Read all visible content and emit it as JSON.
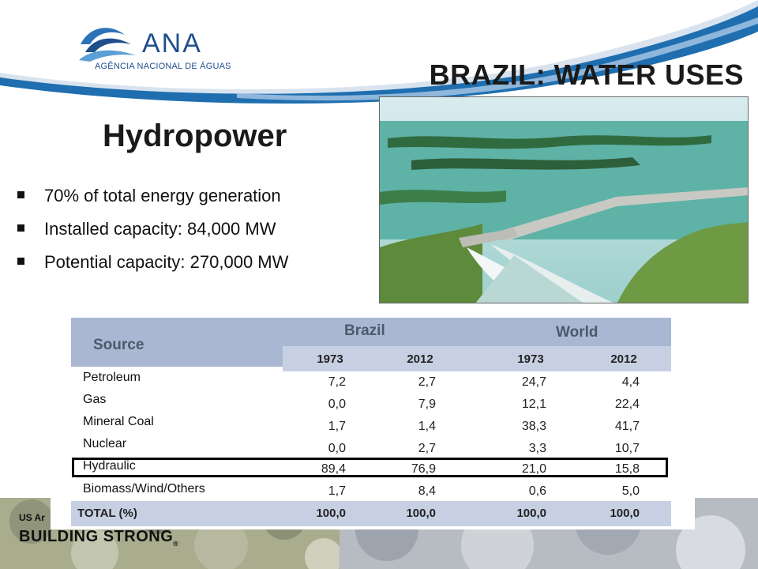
{
  "header": {
    "logo_name": "ANA",
    "logo_subtitle": "AGÊNCIA NACIONAL DE ÁGUAS",
    "title": "BRAZIL: WATER USES"
  },
  "section": {
    "subheading": "Hydropower",
    "bullets": [
      "70% of total energy generation",
      "Installed capacity: 84,000 MW",
      "Potential capacity: 270,000 MW"
    ]
  },
  "table": {
    "source_header": "Source",
    "groups": [
      "Brazil",
      "World"
    ],
    "years": [
      "1973",
      "2012",
      "1973",
      "2012"
    ],
    "rows": [
      {
        "source": "Petroleum",
        "values": [
          "7,2",
          "2,7",
          "24,7",
          "4,4"
        ]
      },
      {
        "source": "Gas",
        "values": [
          "0,0",
          "7,9",
          "12,1",
          "22,4"
        ]
      },
      {
        "source": "Mineral Coal",
        "values": [
          "1,7",
          "1,4",
          "38,3",
          "41,7"
        ]
      },
      {
        "source": "Nuclear",
        "values": [
          "0,0",
          "2,7",
          "3,3",
          "10,7"
        ]
      },
      {
        "source": "Hydraulic",
        "values": [
          "89,4",
          "76,9",
          "21,0",
          "15,8"
        ]
      },
      {
        "source": "Biomass/Wind/Others",
        "values": [
          "1,7",
          "8,4",
          "0,6",
          "5,0"
        ]
      }
    ],
    "total_label": "TOTAL (%)",
    "total_values": [
      "100,0",
      "100,0",
      "100,0",
      "100,0"
    ],
    "highlighted_row": "Hydraulic"
  },
  "footer": {
    "org_text": "US Ar",
    "slogan": "BUILDING STRONG",
    "registered": "®"
  },
  "colors": {
    "logo_blue": "#1e4f8c",
    "header_band": "#a9b7d3",
    "year_band": "#c7d0e3",
    "swoosh_blue": "#1f6fb0"
  }
}
